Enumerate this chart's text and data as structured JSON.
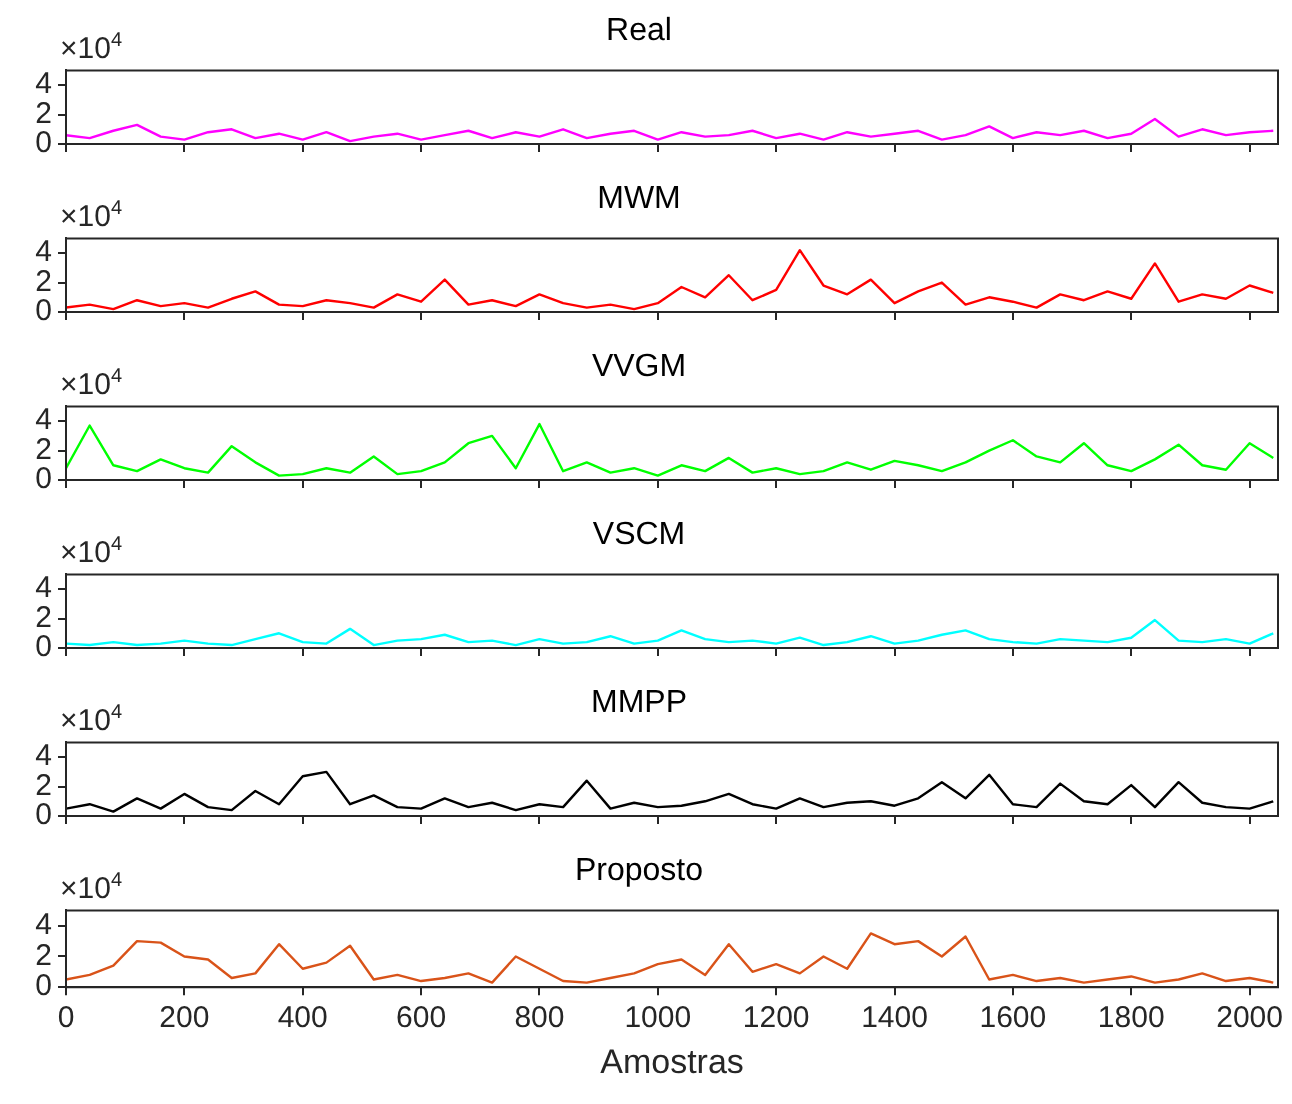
{
  "chart_data": [
    {
      "type": "line",
      "title": "Real",
      "color": "#ff00ff",
      "annotations": [
        "×10$^{4}$"
      ],
      "tick_labels": "y",
      "grid": false,
      "xlim": [
        0,
        2048
      ],
      "xticks": [
        0,
        200,
        400,
        600,
        800,
        1000,
        1200,
        1400,
        1600,
        1800,
        2000
      ],
      "ylim": [
        0,
        5
      ],
      "yticks": [
        0,
        2,
        4
      ],
      "x": [
        0,
        40,
        80,
        120,
        160,
        200,
        240,
        280,
        320,
        360,
        400,
        440,
        480,
        520,
        560,
        600,
        640,
        680,
        720,
        760,
        800,
        840,
        880,
        920,
        960,
        1000,
        1040,
        1080,
        1120,
        1160,
        1200,
        1240,
        1280,
        1320,
        1360,
        1400,
        1440,
        1480,
        1520,
        1560,
        1600,
        1640,
        1680,
        1720,
        1760,
        1800,
        1840,
        1880,
        1920,
        1960,
        2000,
        2040
      ],
      "values": [
        0.6,
        0.4,
        0.9,
        1.3,
        0.5,
        0.3,
        0.8,
        1.0,
        0.4,
        0.7,
        0.3,
        0.8,
        0.2,
        0.5,
        0.7,
        0.3,
        0.6,
        0.9,
        0.4,
        0.8,
        0.5,
        1.0,
        0.4,
        0.7,
        0.9,
        0.3,
        0.8,
        0.5,
        0.6,
        0.9,
        0.4,
        0.7,
        0.3,
        0.8,
        0.5,
        0.7,
        0.9,
        0.3,
        0.6,
        1.2,
        0.4,
        0.8,
        0.6,
        0.9,
        0.4,
        0.7,
        1.7,
        0.5,
        1.0,
        0.6,
        0.8,
        0.9
      ]
    },
    {
      "type": "line",
      "title": "MWM",
      "color": "#ff0000",
      "annotations": [
        "×10$^{4}$"
      ],
      "tick_labels": "y",
      "grid": false,
      "xlim": [
        0,
        2048
      ],
      "xticks": [
        0,
        200,
        400,
        600,
        800,
        1000,
        1200,
        1400,
        1600,
        1800,
        2000
      ],
      "ylim": [
        0,
        5
      ],
      "yticks": [
        0,
        2,
        4
      ],
      "x": [
        0,
        40,
        80,
        120,
        160,
        200,
        240,
        280,
        320,
        360,
        400,
        440,
        480,
        520,
        560,
        600,
        640,
        680,
        720,
        760,
        800,
        840,
        880,
        920,
        960,
        1000,
        1040,
        1080,
        1120,
        1160,
        1200,
        1240,
        1280,
        1320,
        1360,
        1400,
        1440,
        1480,
        1520,
        1560,
        1600,
        1640,
        1680,
        1720,
        1760,
        1800,
        1840,
        1880,
        1920,
        1960,
        2000,
        2040
      ],
      "values": [
        0.3,
        0.5,
        0.2,
        0.8,
        0.4,
        0.6,
        0.3,
        0.9,
        1.4,
        0.5,
        0.4,
        0.8,
        0.6,
        0.3,
        1.2,
        0.7,
        2.2,
        0.5,
        0.8,
        0.4,
        1.2,
        0.6,
        0.3,
        0.5,
        0.2,
        0.6,
        1.7,
        1.0,
        2.5,
        0.8,
        1.5,
        4.2,
        1.8,
        1.2,
        2.2,
        0.6,
        1.4,
        2.0,
        0.5,
        1.0,
        0.7,
        0.3,
        1.2,
        0.8,
        1.4,
        0.9,
        3.3,
        0.7,
        1.2,
        0.9,
        1.8,
        1.3
      ]
    },
    {
      "type": "line",
      "title": "VVGM",
      "color": "#00ff00",
      "annotations": [
        "×10$^{4}$"
      ],
      "tick_labels": "y",
      "grid": false,
      "xlim": [
        0,
        2048
      ],
      "xticks": [
        0,
        200,
        400,
        600,
        800,
        1000,
        1200,
        1400,
        1600,
        1800,
        2000
      ],
      "ylim": [
        0,
        5
      ],
      "yticks": [
        0,
        2,
        4
      ],
      "x": [
        0,
        40,
        80,
        120,
        160,
        200,
        240,
        280,
        320,
        360,
        400,
        440,
        480,
        520,
        560,
        600,
        640,
        680,
        720,
        760,
        800,
        840,
        880,
        920,
        960,
        1000,
        1040,
        1080,
        1120,
        1160,
        1200,
        1240,
        1280,
        1320,
        1360,
        1400,
        1440,
        1480,
        1520,
        1560,
        1600,
        1640,
        1680,
        1720,
        1760,
        1800,
        1840,
        1880,
        1920,
        1960,
        2000,
        2040
      ],
      "values": [
        0.8,
        3.7,
        1.0,
        0.6,
        1.4,
        0.8,
        0.5,
        2.3,
        1.2,
        0.3,
        0.4,
        0.8,
        0.5,
        1.6,
        0.4,
        0.6,
        1.2,
        2.5,
        3.0,
        0.8,
        3.8,
        0.6,
        1.2,
        0.5,
        0.8,
        0.3,
        1.0,
        0.6,
        1.5,
        0.5,
        0.8,
        0.4,
        0.6,
        1.2,
        0.7,
        1.3,
        1.0,
        0.6,
        1.2,
        2.0,
        2.7,
        1.6,
        1.2,
        2.5,
        1.0,
        0.6,
        1.4,
        2.4,
        1.0,
        0.7,
        2.5,
        1.5
      ]
    },
    {
      "type": "line",
      "title": "VSCM",
      "color": "#00ffff",
      "annotations": [
        "×10$^{4}$"
      ],
      "tick_labels": "y",
      "grid": false,
      "xlim": [
        0,
        2048
      ],
      "xticks": [
        0,
        200,
        400,
        600,
        800,
        1000,
        1200,
        1400,
        1600,
        1800,
        2000
      ],
      "ylim": [
        0,
        5
      ],
      "yticks": [
        0,
        2,
        4
      ],
      "x": [
        0,
        40,
        80,
        120,
        160,
        200,
        240,
        280,
        320,
        360,
        400,
        440,
        480,
        520,
        560,
        600,
        640,
        680,
        720,
        760,
        800,
        840,
        880,
        920,
        960,
        1000,
        1040,
        1080,
        1120,
        1160,
        1200,
        1240,
        1280,
        1320,
        1360,
        1400,
        1440,
        1480,
        1520,
        1560,
        1600,
        1640,
        1680,
        1720,
        1760,
        1800,
        1840,
        1880,
        1920,
        1960,
        2000,
        2040
      ],
      "values": [
        0.3,
        0.2,
        0.4,
        0.2,
        0.3,
        0.5,
        0.3,
        0.2,
        0.6,
        1.0,
        0.4,
        0.3,
        1.3,
        0.2,
        0.5,
        0.6,
        0.9,
        0.4,
        0.5,
        0.2,
        0.6,
        0.3,
        0.4,
        0.8,
        0.3,
        0.5,
        1.2,
        0.6,
        0.4,
        0.5,
        0.3,
        0.7,
        0.2,
        0.4,
        0.8,
        0.3,
        0.5,
        0.9,
        1.2,
        0.6,
        0.4,
        0.3,
        0.6,
        0.5,
        0.4,
        0.7,
        1.9,
        0.5,
        0.4,
        0.6,
        0.3,
        1.0
      ]
    },
    {
      "type": "line",
      "title": "MMPP",
      "color": "#000000",
      "annotations": [
        "×10$^{4}$"
      ],
      "tick_labels": "y",
      "grid": false,
      "xlim": [
        0,
        2048
      ],
      "xticks": [
        0,
        200,
        400,
        600,
        800,
        1000,
        1200,
        1400,
        1600,
        1800,
        2000
      ],
      "ylim": [
        0,
        5
      ],
      "yticks": [
        0,
        2,
        4
      ],
      "x": [
        0,
        40,
        80,
        120,
        160,
        200,
        240,
        280,
        320,
        360,
        400,
        440,
        480,
        520,
        560,
        600,
        640,
        680,
        720,
        760,
        800,
        840,
        880,
        920,
        960,
        1000,
        1040,
        1080,
        1120,
        1160,
        1200,
        1240,
        1280,
        1320,
        1360,
        1400,
        1440,
        1480,
        1520,
        1560,
        1600,
        1640,
        1680,
        1720,
        1760,
        1800,
        1840,
        1880,
        1920,
        1960,
        2000,
        2040
      ],
      "values": [
        0.5,
        0.8,
        0.3,
        1.2,
        0.5,
        1.5,
        0.6,
        0.4,
        1.7,
        0.8,
        2.7,
        3.0,
        0.8,
        1.4,
        0.6,
        0.5,
        1.2,
        0.6,
        0.9,
        0.4,
        0.8,
        0.6,
        2.4,
        0.5,
        0.9,
        0.6,
        0.7,
        1.0,
        1.5,
        0.8,
        0.5,
        1.2,
        0.6,
        0.9,
        1.0,
        0.7,
        1.2,
        2.3,
        1.2,
        2.8,
        0.8,
        0.6,
        2.2,
        1.0,
        0.8,
        2.1,
        0.6,
        2.3,
        0.9,
        0.6,
        0.5,
        1.0
      ]
    },
    {
      "type": "line",
      "title": "Proposto",
      "xlabel": "Amostras",
      "color": "#d95319",
      "annotations": [
        "×10$^{4}$"
      ],
      "grid": false,
      "xlim": [
        0,
        2048
      ],
      "xticks": [
        0,
        200,
        400,
        600,
        800,
        1000,
        1200,
        1400,
        1600,
        1800,
        2000
      ],
      "ylim": [
        0,
        5
      ],
      "yticks": [
        0,
        2,
        4
      ],
      "x": [
        0,
        40,
        80,
        120,
        160,
        200,
        240,
        280,
        320,
        360,
        400,
        440,
        480,
        520,
        560,
        600,
        640,
        680,
        720,
        760,
        800,
        840,
        880,
        920,
        960,
        1000,
        1040,
        1080,
        1120,
        1160,
        1200,
        1240,
        1280,
        1320,
        1360,
        1400,
        1440,
        1480,
        1520,
        1560,
        1600,
        1640,
        1680,
        1720,
        1760,
        1800,
        1840,
        1880,
        1920,
        1960,
        2000,
        2040
      ],
      "values": [
        0.5,
        0.8,
        1.4,
        3.0,
        2.9,
        2.0,
        1.8,
        0.6,
        0.9,
        2.8,
        1.2,
        1.6,
        2.7,
        0.5,
        0.8,
        0.4,
        0.6,
        0.9,
        0.3,
        2.0,
        1.2,
        0.4,
        0.3,
        0.6,
        0.9,
        1.5,
        1.8,
        0.8,
        2.8,
        1.0,
        1.5,
        0.9,
        2.0,
        1.2,
        3.5,
        2.8,
        3.0,
        2.0,
        3.3,
        0.5,
        0.8,
        0.4,
        0.6,
        0.3,
        0.5,
        0.7,
        0.3,
        0.5,
        0.9,
        0.4,
        0.6,
        0.3
      ]
    }
  ]
}
